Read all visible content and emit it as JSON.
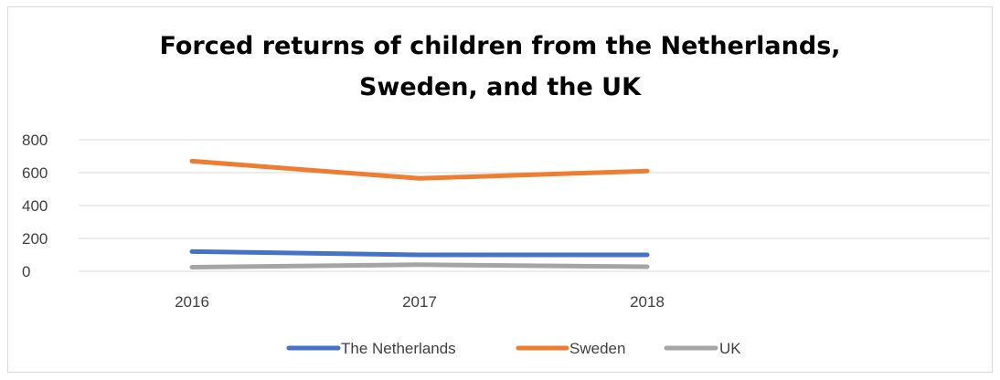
{
  "chart_data": {
    "type": "line",
    "title": "Forced returns of children  from the Netherlands, Sweden, and the UK",
    "title_lines": [
      "Forced returns of children  from the Netherlands,",
      "Sweden, and the UK"
    ],
    "xlabel": "",
    "ylabel": "",
    "categories": [
      "2016",
      "2017",
      "2018"
    ],
    "ylim": [
      0,
      800
    ],
    "yticks": [
      0,
      200,
      400,
      600,
      800
    ],
    "grid": true,
    "legend_position": "bottom",
    "series": [
      {
        "name": "The Netherlands",
        "color": "#4472C4",
        "values": [
          120,
          100,
          100
        ]
      },
      {
        "name": "Sweden",
        "color": "#ED7D31",
        "values": [
          670,
          565,
          610
        ]
      },
      {
        "name": "UK",
        "color": "#A5A5A5",
        "values": [
          25,
          40,
          28
        ]
      }
    ]
  }
}
